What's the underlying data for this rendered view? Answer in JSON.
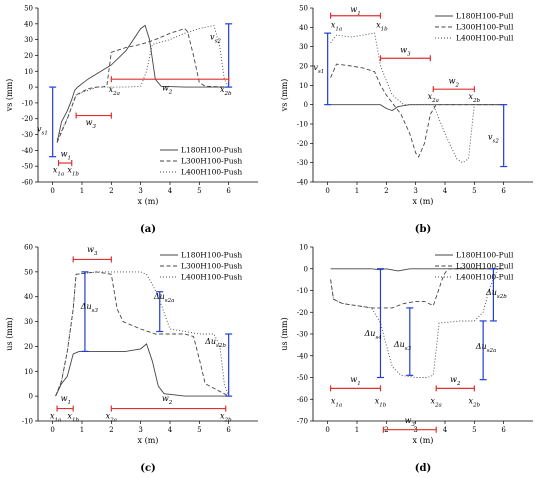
{
  "chart_data": [
    {
      "type": "line",
      "panel_label": "(a)",
      "xlabel": "x (m)",
      "ylabel": "vs (mm)",
      "xlim": [
        -0.5,
        7
      ],
      "ylim": [
        -60,
        50
      ],
      "xticks": [
        0,
        1,
        2,
        3,
        4,
        5,
        6
      ],
      "yticks": [
        -60,
        -50,
        -40,
        -30,
        -20,
        -10,
        0,
        10,
        20,
        30,
        40,
        50
      ],
      "legend_position": "bottom-right",
      "series": [
        {
          "name": "L180H100-Push",
          "style": "solid",
          "x": [
            0.15,
            0.3,
            0.5,
            0.65,
            0.75,
            0.85,
            1.2,
            2.0,
            2.5,
            3.0,
            3.15,
            3.3,
            3.5,
            3.7,
            4.5,
            6.0
          ],
          "y": [
            -35,
            -22,
            -15,
            -8,
            -2,
            0,
            5,
            14,
            23,
            37,
            39,
            30,
            5,
            0.5,
            0,
            0
          ]
        },
        {
          "name": "L300H100-Push",
          "style": "dashed",
          "x": [
            0.15,
            0.5,
            0.8,
            1.2,
            1.5,
            1.7,
            1.85,
            2.0,
            2.5,
            3.0,
            3.5,
            4.0,
            4.5,
            4.6,
            4.8,
            5.0,
            5.2,
            6.0
          ],
          "y": [
            -35,
            -20,
            -5,
            -1,
            0,
            0,
            1,
            22,
            25,
            27,
            30,
            34,
            37,
            35,
            20,
            3,
            0.5,
            0
          ]
        },
        {
          "name": "L400H100-Push",
          "style": "dotted",
          "x": [
            0.15,
            0.5,
            0.8,
            1.5,
            2.5,
            3.0,
            3.2,
            3.4,
            4.0,
            4.5,
            5.0,
            5.5,
            5.7,
            5.85,
            6.0
          ],
          "y": [
            -33,
            -20,
            -5,
            0,
            0,
            0.5,
            10,
            27,
            30,
            34,
            37,
            39,
            25,
            5,
            0
          ]
        }
      ],
      "annotations": [
        {
          "type": "vbar",
          "label": "vs1",
          "x": 0,
          "y_from": -44,
          "y_to": 0,
          "label_x": -0.35,
          "label_y": -28
        },
        {
          "type": "vbar",
          "label": "vs2",
          "x": 6,
          "y_from": 0,
          "y_to": 40,
          "label_x": 5.55,
          "label_y": 30
        },
        {
          "type": "hbar",
          "label": "w1",
          "y": -48,
          "x_from": 0.2,
          "x_to": 0.65,
          "label_x": 0.45,
          "label_y": -44
        },
        {
          "type": "hbar",
          "label": "w3",
          "y": -18,
          "x_from": 0.8,
          "x_to": 2.0,
          "label_x": 1.3,
          "label_y": -24
        },
        {
          "type": "hbar",
          "label": "w2",
          "y": 5,
          "x_from": 2.0,
          "x_to": 6.0,
          "label_x": 3.9,
          "label_y": -2
        },
        {
          "type": "text",
          "label": "x1a",
          "x": 0.2,
          "y": -54
        },
        {
          "type": "text",
          "label": "x1b",
          "x": 0.7,
          "y": -54
        },
        {
          "type": "text",
          "label": "x2a",
          "x": 2.1,
          "y": -3
        },
        {
          "type": "text",
          "label": "x2b",
          "x": 5.9,
          "y": -3
        }
      ]
    },
    {
      "type": "line",
      "panel_label": "(b)",
      "xlabel": "x (m)",
      "ylabel": "vs (mm)",
      "xlim": [
        -0.5,
        7
      ],
      "ylim": [
        -40,
        50
      ],
      "xticks": [
        0,
        1,
        2,
        3,
        4,
        5,
        6
      ],
      "yticks": [
        -40,
        -30,
        -20,
        -10,
        0,
        10,
        20,
        30,
        40,
        50
      ],
      "legend_position": "top-right",
      "series": [
        {
          "name": "L180H100-Pull",
          "style": "solid",
          "x": [
            0.1,
            1.0,
            1.8,
            2.0,
            2.2,
            2.4,
            2.8,
            6.0
          ],
          "y": [
            0,
            0,
            0,
            -2,
            -3,
            -1,
            0,
            0
          ]
        },
        {
          "name": "L300H100-Pull",
          "style": "dashed",
          "x": [
            0.1,
            0.3,
            0.8,
            1.2,
            1.6,
            1.8,
            2.0,
            2.5,
            2.8,
            3.0,
            3.1,
            3.3,
            3.5,
            3.7,
            4.0,
            6.0
          ],
          "y": [
            14,
            21,
            20,
            19,
            17,
            10,
            5,
            -5,
            -15,
            -25,
            -27,
            -20,
            -5,
            0,
            0,
            0
          ]
        },
        {
          "name": "L400H100-Pull",
          "style": "dotted",
          "x": [
            0.1,
            0.3,
            0.8,
            1.2,
            1.6,
            1.8,
            2.2,
            2.6,
            3.0,
            3.6,
            4.0,
            4.4,
            4.6,
            4.8,
            5.0,
            6.0
          ],
          "y": [
            32,
            36,
            35,
            36,
            37,
            20,
            5,
            0,
            0,
            0,
            -15,
            -28,
            -30,
            -28,
            0,
            0
          ]
        }
      ],
      "annotations": [
        {
          "type": "vbar",
          "label": "vs1",
          "x": 0,
          "y_from": 0,
          "y_to": 37,
          "label_x": -0.3,
          "label_y": 18
        },
        {
          "type": "vbar",
          "label": "vs2",
          "x": 6,
          "y_from": -32,
          "y_to": 0,
          "label_x": 5.65,
          "label_y": -18
        },
        {
          "type": "hbar",
          "label": "w1",
          "y": 46,
          "x_from": 0.1,
          "x_to": 1.8,
          "label_x": 0.95,
          "label_y": 48
        },
        {
          "type": "hbar",
          "label": "w3",
          "y": 24,
          "x_from": 1.8,
          "x_to": 3.5,
          "label_x": 2.65,
          "label_y": 27
        },
        {
          "type": "hbar",
          "label": "w2",
          "y": 8,
          "x_from": 3.6,
          "x_to": 5.0,
          "label_x": 4.3,
          "label_y": 11
        },
        {
          "type": "text",
          "label": "x1a",
          "x": 0.3,
          "y": 40
        },
        {
          "type": "text",
          "label": "x1b",
          "x": 1.85,
          "y": 40
        },
        {
          "type": "text",
          "label": "x2a",
          "x": 3.6,
          "y": 3
        },
        {
          "type": "text",
          "label": "x2b",
          "x": 5.0,
          "y": 3
        }
      ]
    },
    {
      "type": "line",
      "panel_label": "(c)",
      "xlabel": "x (m)",
      "ylabel": "us (mm)",
      "xlim": [
        -0.5,
        7
      ],
      "ylim": [
        -10,
        60
      ],
      "xticks": [
        0,
        1,
        2,
        3,
        4,
        5,
        6
      ],
      "yticks": [
        -10,
        0,
        10,
        20,
        30,
        40,
        50,
        60
      ],
      "legend_position": "top-right",
      "series": [
        {
          "name": "L180H100-Push",
          "style": "solid",
          "x": [
            0.1,
            0.3,
            0.5,
            0.7,
            0.9,
            1.5,
            2.0,
            2.5,
            3.0,
            3.2,
            3.4,
            3.6,
            3.8,
            4.5,
            6.0
          ],
          "y": [
            0,
            5,
            8,
            17,
            18,
            18,
            18,
            18,
            19,
            21,
            14,
            4,
            1,
            0,
            0
          ]
        },
        {
          "name": "L300H100-Push",
          "style": "dashed",
          "x": [
            0.1,
            0.3,
            0.5,
            0.7,
            0.8,
            1.5,
            2.0,
            2.2,
            2.4,
            3.0,
            3.5,
            4.0,
            4.5,
            4.8,
            5.0,
            5.2,
            6.0
          ],
          "y": [
            0,
            6,
            18,
            35,
            49,
            50,
            49,
            35,
            30,
            27,
            25,
            25,
            25,
            24,
            15,
            5,
            0
          ]
        },
        {
          "name": "L400H100-Push",
          "style": "dotted",
          "x": [
            0.1,
            0.3,
            0.5,
            0.7,
            0.8,
            1.5,
            2.5,
            3.0,
            3.2,
            3.4,
            3.6,
            4.0,
            5.0,
            5.5,
            5.7,
            5.85,
            6.0
          ],
          "y": [
            0,
            6,
            18,
            35,
            49,
            50,
            50,
            50,
            49,
            45,
            40,
            27,
            25,
            25,
            20,
            5,
            0
          ]
        }
      ],
      "annotations": [
        {
          "type": "vbar",
          "label": "Δus3",
          "x": 1.1,
          "y_from": 18,
          "y_to": 50,
          "label_x": 1.25,
          "label_y": 35
        },
        {
          "type": "vbar",
          "label": "Δus2a",
          "x": 3.65,
          "y_from": 26,
          "y_to": 42,
          "label_x": 3.8,
          "label_y": 39
        },
        {
          "type": "vbar",
          "label": "Δus2b",
          "x": 6,
          "y_from": 0,
          "y_to": 25,
          "label_x": 5.55,
          "label_y": 21
        },
        {
          "type": "hbar",
          "label": "w3",
          "y": 55,
          "x_from": 0.7,
          "x_to": 2.0,
          "label_x": 1.35,
          "label_y": 58
        },
        {
          "type": "hbar",
          "label": "w1",
          "y": -5,
          "x_from": 0.15,
          "x_to": 0.7,
          "label_x": 0.45,
          "label_y": -2
        },
        {
          "type": "hbar",
          "label": "w2",
          "y": -5,
          "x_from": 2.0,
          "x_to": 5.9,
          "label_x": 3.9,
          "label_y": -2
        },
        {
          "type": "text",
          "label": "x1a",
          "x": 0.1,
          "y": -9
        },
        {
          "type": "text",
          "label": "x1b",
          "x": 0.7,
          "y": -9
        },
        {
          "type": "text",
          "label": "x2a",
          "x": 2.0,
          "y": -9
        },
        {
          "type": "text",
          "label": "x2b",
          "x": 5.9,
          "y": -9
        }
      ]
    },
    {
      "type": "line",
      "panel_label": "(d)",
      "xlabel": "x (m)",
      "ylabel": "us (mm)",
      "xlim": [
        -0.5,
        7
      ],
      "ylim": [
        -70,
        10
      ],
      "xticks": [
        0,
        1,
        2,
        3,
        4,
        5,
        6
      ],
      "yticks": [
        -70,
        -60,
        -50,
        -40,
        -30,
        -20,
        -10,
        0,
        10
      ],
      "legend_position": "top-right",
      "series": [
        {
          "name": "L180H100-Pull",
          "style": "solid",
          "x": [
            0.1,
            1.5,
            1.8,
            2.0,
            2.4,
            2.8,
            6.0
          ],
          "y": [
            0,
            0,
            -0.5,
            0,
            -1,
            0,
            0
          ]
        },
        {
          "name": "L300H100-Pull",
          "style": "dashed",
          "x": [
            0.1,
            0.2,
            0.5,
            1.0,
            1.5,
            1.8,
            2.2,
            2.6,
            3.0,
            3.3,
            3.6,
            3.9,
            4.0,
            4.1,
            6.0
          ],
          "y": [
            -5,
            -14,
            -16,
            -17,
            -18,
            -18,
            -18,
            -16,
            -15,
            -15,
            -17,
            -5,
            -2,
            0,
            0
          ]
        },
        {
          "name": "L400H100-Pull",
          "style": "dotted",
          "x": [
            0.1,
            0.2,
            0.5,
            1.0,
            1.5,
            1.8,
            2.0,
            2.2,
            2.5,
            3.0,
            3.4,
            3.6,
            3.8,
            4.5,
            5.0,
            5.3,
            5.5,
            5.7,
            5.8,
            6.0
          ],
          "y": [
            -5,
            -14,
            -16,
            -17,
            -18,
            -25,
            -35,
            -45,
            -49,
            -50,
            -50,
            -49,
            -25,
            -24,
            -24,
            -20,
            -10,
            -3,
            0,
            0
          ]
        }
      ],
      "annotations": [
        {
          "type": "vbar",
          "label": "Δus4",
          "x": 1.8,
          "y_from": -50,
          "y_to": 0,
          "label_x": 1.55,
          "label_y": -31
        },
        {
          "type": "vbar",
          "label": "Δus3",
          "x": 2.8,
          "y_from": -49,
          "y_to": -18,
          "label_x": 2.55,
          "label_y": -36
        },
        {
          "type": "vbar",
          "label": "Δus2a",
          "x": 5.3,
          "y_from": -51,
          "y_to": -24,
          "label_x": 5.4,
          "label_y": -37
        },
        {
          "type": "vbar",
          "label": "Δus2b",
          "x": 5.65,
          "y_from": -24,
          "y_to": 0,
          "label_x": 5.75,
          "label_y": -12
        },
        {
          "type": "hbar",
          "label": "w1",
          "y": -55,
          "x_from": 0.1,
          "x_to": 1.8,
          "label_x": 0.95,
          "label_y": -52
        },
        {
          "type": "hbar",
          "label": "w2",
          "y": -55,
          "x_from": 3.7,
          "x_to": 5.0,
          "label_x": 4.35,
          "label_y": -52
        },
        {
          "type": "hbar",
          "label": "w3",
          "y": -74,
          "x_from": 1.9,
          "x_to": 3.7,
          "label_x": 2.8,
          "label_y": -71
        },
        {
          "type": "text",
          "label": "x1a",
          "x": 0.3,
          "y": -62
        },
        {
          "type": "text",
          "label": "x1b",
          "x": 1.8,
          "y": -62
        },
        {
          "type": "text",
          "label": "x2a",
          "x": 3.7,
          "y": -62
        },
        {
          "type": "text",
          "label": "x2b",
          "x": 5.0,
          "y": -62
        }
      ]
    }
  ],
  "colors": {
    "series": "#444444",
    "annotation_bar": "#1f3fd6",
    "annotation_span": "#e03030",
    "axis": "#000000"
  }
}
